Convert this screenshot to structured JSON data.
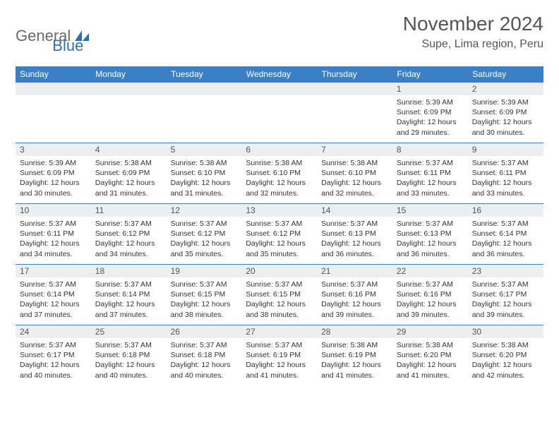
{
  "logo": {
    "text1": "General",
    "text2": "Blue"
  },
  "header": {
    "title": "November 2024",
    "location": "Supe, Lima region, Peru"
  },
  "styling": {
    "page_bg": "#ffffff",
    "header_row_bg": "#3b7fc4",
    "header_row_text": "#ffffff",
    "daynum_bg": "#eceef0",
    "daynum_text": "#555555",
    "cell_border": "#3b7fc4",
    "body_text": "#333333",
    "title_text": "#555555",
    "logo_gray": "#6b6b6b",
    "logo_blue": "#2f6fb0",
    "title_fontsize": 28,
    "location_fontsize": 16,
    "dayhead_fontsize": 12,
    "cell_fontsize": 10.5,
    "columns": 7,
    "rows": 5
  },
  "day_headers": [
    "Sunday",
    "Monday",
    "Tuesday",
    "Wednesday",
    "Thursday",
    "Friday",
    "Saturday"
  ],
  "weeks": [
    [
      {
        "n": "",
        "sunrise": "",
        "sunset": "",
        "daylight": ""
      },
      {
        "n": "",
        "sunrise": "",
        "sunset": "",
        "daylight": ""
      },
      {
        "n": "",
        "sunrise": "",
        "sunset": "",
        "daylight": ""
      },
      {
        "n": "",
        "sunrise": "",
        "sunset": "",
        "daylight": ""
      },
      {
        "n": "",
        "sunrise": "",
        "sunset": "",
        "daylight": ""
      },
      {
        "n": "1",
        "sunrise": "Sunrise: 5:39 AM",
        "sunset": "Sunset: 6:09 PM",
        "daylight": "Daylight: 12 hours and 29 minutes."
      },
      {
        "n": "2",
        "sunrise": "Sunrise: 5:39 AM",
        "sunset": "Sunset: 6:09 PM",
        "daylight": "Daylight: 12 hours and 30 minutes."
      }
    ],
    [
      {
        "n": "3",
        "sunrise": "Sunrise: 5:39 AM",
        "sunset": "Sunset: 6:09 PM",
        "daylight": "Daylight: 12 hours and 30 minutes."
      },
      {
        "n": "4",
        "sunrise": "Sunrise: 5:38 AM",
        "sunset": "Sunset: 6:09 PM",
        "daylight": "Daylight: 12 hours and 31 minutes."
      },
      {
        "n": "5",
        "sunrise": "Sunrise: 5:38 AM",
        "sunset": "Sunset: 6:10 PM",
        "daylight": "Daylight: 12 hours and 31 minutes."
      },
      {
        "n": "6",
        "sunrise": "Sunrise: 5:38 AM",
        "sunset": "Sunset: 6:10 PM",
        "daylight": "Daylight: 12 hours and 32 minutes."
      },
      {
        "n": "7",
        "sunrise": "Sunrise: 5:38 AM",
        "sunset": "Sunset: 6:10 PM",
        "daylight": "Daylight: 12 hours and 32 minutes."
      },
      {
        "n": "8",
        "sunrise": "Sunrise: 5:37 AM",
        "sunset": "Sunset: 6:11 PM",
        "daylight": "Daylight: 12 hours and 33 minutes."
      },
      {
        "n": "9",
        "sunrise": "Sunrise: 5:37 AM",
        "sunset": "Sunset: 6:11 PM",
        "daylight": "Daylight: 12 hours and 33 minutes."
      }
    ],
    [
      {
        "n": "10",
        "sunrise": "Sunrise: 5:37 AM",
        "sunset": "Sunset: 6:11 PM",
        "daylight": "Daylight: 12 hours and 34 minutes."
      },
      {
        "n": "11",
        "sunrise": "Sunrise: 5:37 AM",
        "sunset": "Sunset: 6:12 PM",
        "daylight": "Daylight: 12 hours and 34 minutes."
      },
      {
        "n": "12",
        "sunrise": "Sunrise: 5:37 AM",
        "sunset": "Sunset: 6:12 PM",
        "daylight": "Daylight: 12 hours and 35 minutes."
      },
      {
        "n": "13",
        "sunrise": "Sunrise: 5:37 AM",
        "sunset": "Sunset: 6:12 PM",
        "daylight": "Daylight: 12 hours and 35 minutes."
      },
      {
        "n": "14",
        "sunrise": "Sunrise: 5:37 AM",
        "sunset": "Sunset: 6:13 PM",
        "daylight": "Daylight: 12 hours and 36 minutes."
      },
      {
        "n": "15",
        "sunrise": "Sunrise: 5:37 AM",
        "sunset": "Sunset: 6:13 PM",
        "daylight": "Daylight: 12 hours and 36 minutes."
      },
      {
        "n": "16",
        "sunrise": "Sunrise: 5:37 AM",
        "sunset": "Sunset: 6:14 PM",
        "daylight": "Daylight: 12 hours and 36 minutes."
      }
    ],
    [
      {
        "n": "17",
        "sunrise": "Sunrise: 5:37 AM",
        "sunset": "Sunset: 6:14 PM",
        "daylight": "Daylight: 12 hours and 37 minutes."
      },
      {
        "n": "18",
        "sunrise": "Sunrise: 5:37 AM",
        "sunset": "Sunset: 6:14 PM",
        "daylight": "Daylight: 12 hours and 37 minutes."
      },
      {
        "n": "19",
        "sunrise": "Sunrise: 5:37 AM",
        "sunset": "Sunset: 6:15 PM",
        "daylight": "Daylight: 12 hours and 38 minutes."
      },
      {
        "n": "20",
        "sunrise": "Sunrise: 5:37 AM",
        "sunset": "Sunset: 6:15 PM",
        "daylight": "Daylight: 12 hours and 38 minutes."
      },
      {
        "n": "21",
        "sunrise": "Sunrise: 5:37 AM",
        "sunset": "Sunset: 6:16 PM",
        "daylight": "Daylight: 12 hours and 39 minutes."
      },
      {
        "n": "22",
        "sunrise": "Sunrise: 5:37 AM",
        "sunset": "Sunset: 6:16 PM",
        "daylight": "Daylight: 12 hours and 39 minutes."
      },
      {
        "n": "23",
        "sunrise": "Sunrise: 5:37 AM",
        "sunset": "Sunset: 6:17 PM",
        "daylight": "Daylight: 12 hours and 39 minutes."
      }
    ],
    [
      {
        "n": "24",
        "sunrise": "Sunrise: 5:37 AM",
        "sunset": "Sunset: 6:17 PM",
        "daylight": "Daylight: 12 hours and 40 minutes."
      },
      {
        "n": "25",
        "sunrise": "Sunrise: 5:37 AM",
        "sunset": "Sunset: 6:18 PM",
        "daylight": "Daylight: 12 hours and 40 minutes."
      },
      {
        "n": "26",
        "sunrise": "Sunrise: 5:37 AM",
        "sunset": "Sunset: 6:18 PM",
        "daylight": "Daylight: 12 hours and 40 minutes."
      },
      {
        "n": "27",
        "sunrise": "Sunrise: 5:37 AM",
        "sunset": "Sunset: 6:19 PM",
        "daylight": "Daylight: 12 hours and 41 minutes."
      },
      {
        "n": "28",
        "sunrise": "Sunrise: 5:38 AM",
        "sunset": "Sunset: 6:19 PM",
        "daylight": "Daylight: 12 hours and 41 minutes."
      },
      {
        "n": "29",
        "sunrise": "Sunrise: 5:38 AM",
        "sunset": "Sunset: 6:20 PM",
        "daylight": "Daylight: 12 hours and 41 minutes."
      },
      {
        "n": "30",
        "sunrise": "Sunrise: 5:38 AM",
        "sunset": "Sunset: 6:20 PM",
        "daylight": "Daylight: 12 hours and 42 minutes."
      }
    ]
  ]
}
